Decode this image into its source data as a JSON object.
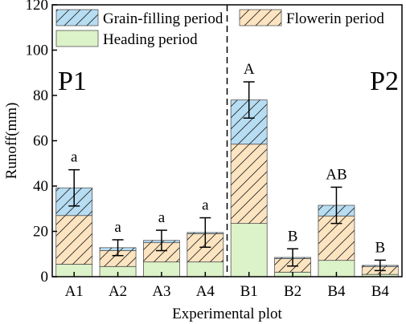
{
  "chart_data": {
    "type": "bar",
    "stacked": true,
    "categories": [
      "A1",
      "A2",
      "A3",
      "A4",
      "B1",
      "B2",
      "B4",
      "B4"
    ],
    "series": [
      {
        "name": "Heading period",
        "values": [
          5.5,
          4.5,
          6.5,
          6.5,
          23.5,
          2.0,
          7.2,
          1.0
        ],
        "color": "#dcf2c8",
        "hatch": "none"
      },
      {
        "name": "Flowerin period",
        "values": [
          21.5,
          7.0,
          8.5,
          12.5,
          35.0,
          6.0,
          19.6,
          3.5
        ],
        "color": "#fce4c0",
        "hatch": "diagonal"
      },
      {
        "name": "Grain-filling period",
        "values": [
          12.2,
          1.3,
          1.0,
          0.5,
          19.5,
          0.5,
          4.7,
          0.5
        ],
        "color": "#b7ddf2",
        "hatch": "diagonal"
      }
    ],
    "error_bars": [
      8.0,
      3.5,
      4.5,
      6.5,
      8.0,
      3.8,
      8.0,
      2.3
    ],
    "significance_labels": [
      "a",
      "a",
      "a",
      "a",
      "A",
      "B",
      "AB",
      "B"
    ],
    "panel_labels": [
      "P1",
      "P2"
    ],
    "xlabel": "Experimental plot",
    "ylabel": "Runoff(mm)",
    "ylim": [
      0,
      120
    ],
    "yticks": [
      0,
      20,
      40,
      60,
      80,
      100,
      120
    ],
    "divider_after_index": 3,
    "grid": false,
    "legend_position": "top"
  }
}
